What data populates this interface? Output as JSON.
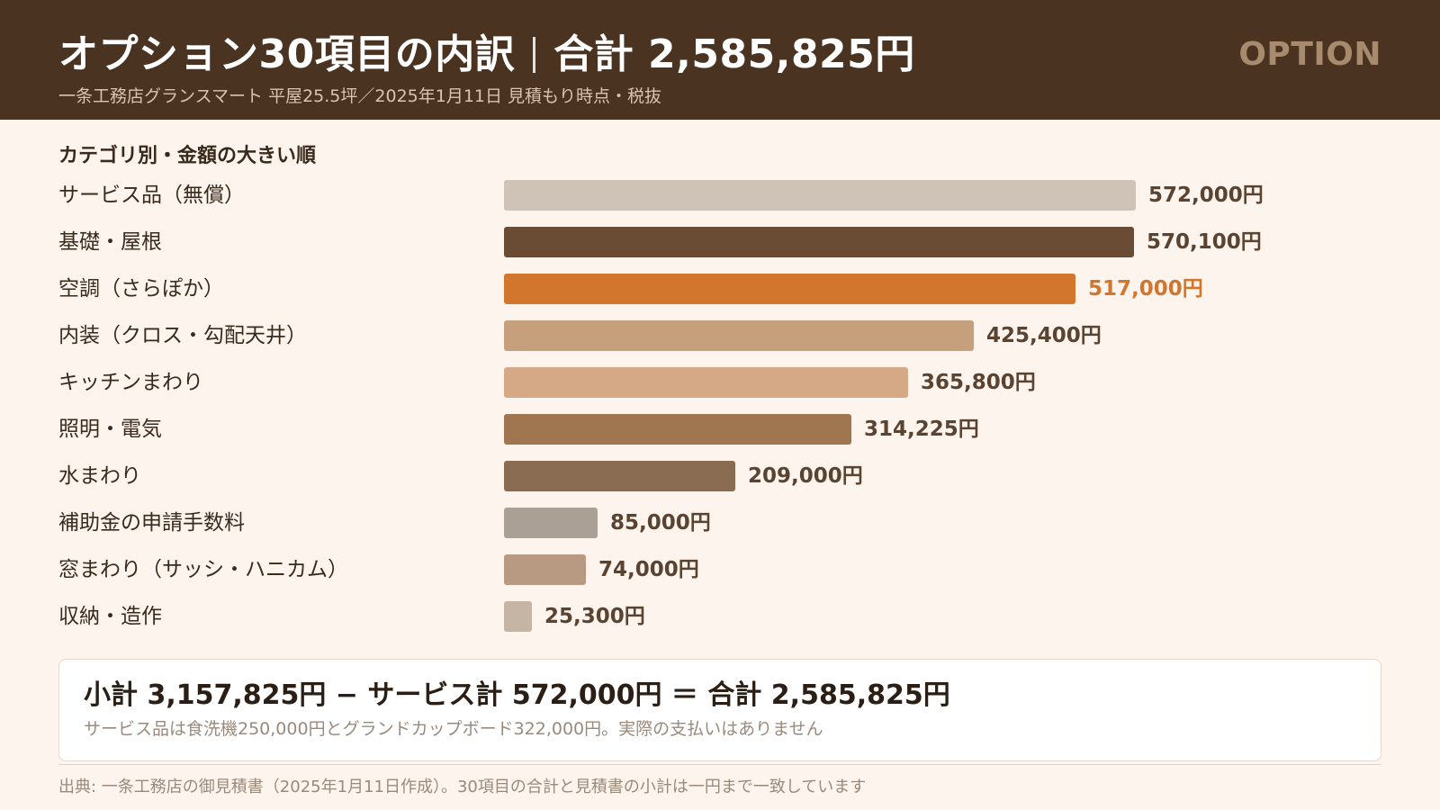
{
  "header": {
    "title_main": "オプション30項目の内訳",
    "title_total": "合計 2,585,825円",
    "subtitle": "一条工務店グランスマート 平屋25.5坪／2025年1月11日 見積もり時点・税抜",
    "brand": "OPTION"
  },
  "section_title": "カテゴリ別・金額の大きい順",
  "chart_data": {
    "type": "bar",
    "orientation": "horizontal",
    "title": "カテゴリ別・金額の大きい順",
    "unit": "円",
    "categories": [
      "サービス品（無償）",
      "基礎・屋根",
      "空調（さらぽか）",
      "内装（クロス・勾配天井）",
      "キッチンまわり",
      "照明・電気",
      "水まわり",
      "補助金の申請手数料",
      "窓まわり（サッシ・ハニカム）",
      "収納・造作"
    ],
    "values": [
      572000,
      570100,
      517000,
      425400,
      365800,
      314225,
      209000,
      85000,
      74000,
      25300
    ],
    "value_labels": [
      "572,000円",
      "570,100円",
      "517,000円",
      "425,400円",
      "365,800円",
      "314,225円",
      "209,000円",
      "85,000円",
      "74,000円",
      "25,300円"
    ],
    "colors": [
      "#cfc3b8",
      "#6a4c35",
      "#d2762d",
      "#c6a07d",
      "#d5a886",
      "#a07650",
      "#8a6c52",
      "#aaa096",
      "#b89a82",
      "#c6b4a4"
    ],
    "label_colors": [
      "#5a4330",
      "#5a4330",
      "#d2762d",
      "#5a4330",
      "#5a4330",
      "#5a4330",
      "#5a4330",
      "#5a4330",
      "#5a4330",
      "#5a4330"
    ],
    "xlim": [
      0,
      572000
    ]
  },
  "summary": {
    "main": "小計 3,157,825円 − サービス計 572,000円 ＝ 合計 2,585,825円",
    "note": "サービス品は食洗機250,000円とグランドカップボード322,000円。実際の支払いはありません"
  },
  "footer": "出典: 一条工務店の御見積書（2025年1月11日作成）。30項目の合計と見積書の小計は一円まで一致しています"
}
